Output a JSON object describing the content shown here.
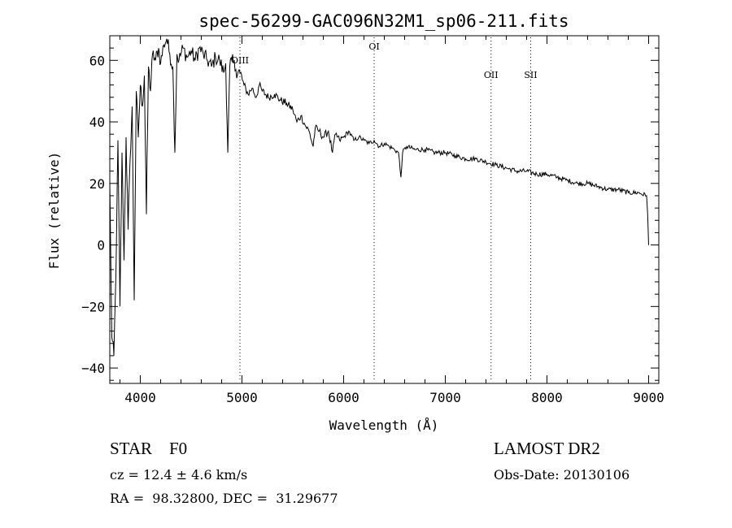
{
  "chart_data": {
    "type": "line",
    "title": "spec-56299-GAC096N32M1_sp06-211.fits",
    "xlabel": "Wavelength (Å)",
    "ylabel": "Flux (relative)",
    "xlim": [
      3700,
      9100
    ],
    "ylim": [
      -45,
      68
    ],
    "x_ticks": [
      4000,
      5000,
      6000,
      7000,
      8000,
      9000
    ],
    "y_ticks": [
      -40,
      -20,
      0,
      20,
      40,
      60
    ],
    "x_tick_labels": [
      "4000",
      "5000",
      "6000",
      "7000",
      "8000",
      "9000"
    ],
    "y_tick_labels": [
      "−40",
      "−20",
      "0",
      "20",
      "40",
      "60"
    ],
    "grid": false,
    "series": [
      {
        "name": "flux",
        "x": [
          3700,
          3720,
          3740,
          3760,
          3780,
          3800,
          3820,
          3840,
          3860,
          3880,
          3900,
          3920,
          3940,
          3960,
          3980,
          4000,
          4020,
          4040,
          4060,
          4080,
          4100,
          4120,
          4150,
          4180,
          4200,
          4230,
          4260,
          4290,
          4320,
          4340,
          4360,
          4380,
          4420,
          4460,
          4500,
          4540,
          4580,
          4620,
          4660,
          4700,
          4740,
          4780,
          4820,
          4840,
          4861,
          4880,
          4900,
          4940,
          4980,
          5020,
          5060,
          5100,
          5140,
          5170,
          5200,
          5260,
          5320,
          5380,
          5440,
          5500,
          5540,
          5580,
          5620,
          5660,
          5700,
          5720,
          5760,
          5800,
          5850,
          5890,
          5920,
          5960,
          6000,
          6050,
          6100,
          6150,
          6200,
          6250,
          6300,
          6350,
          6400,
          6450,
          6500,
          6540,
          6563,
          6580,
          6620,
          6700,
          6800,
          6900,
          7000,
          7100,
          7200,
          7300,
          7400,
          7500,
          7600,
          7700,
          7800,
          7900,
          8000,
          8100,
          8200,
          8300,
          8400,
          8500,
          8600,
          8700,
          8800,
          8900,
          8980,
          8990,
          9000
        ],
        "y": [
          20,
          -30,
          -36,
          -10,
          34,
          -20,
          30,
          -5,
          35,
          5,
          28,
          45,
          -18,
          50,
          35,
          52,
          45,
          55,
          10,
          58,
          50,
          62,
          60,
          64,
          59,
          65,
          67,
          62,
          58,
          30,
          62,
          60,
          64,
          61,
          63,
          60,
          64,
          62,
          60,
          58,
          61,
          60,
          56,
          59,
          30,
          58,
          60,
          57,
          56,
          52,
          49,
          51,
          48,
          52,
          50,
          48,
          49,
          47,
          46,
          44,
          40,
          42,
          39,
          37,
          32,
          38,
          37,
          35,
          37,
          30,
          36,
          34,
          35,
          37,
          34,
          35,
          34,
          33,
          34,
          32,
          33,
          32,
          31,
          30,
          22,
          30,
          32,
          31,
          31,
          30,
          30,
          29,
          28,
          28,
          27,
          26,
          25,
          24,
          24,
          23,
          23,
          22,
          21,
          20,
          20,
          19,
          18,
          18,
          17,
          17,
          16,
          10,
          0
        ]
      }
    ],
    "lines": [
      {
        "label": "OIII",
        "x": 4980
      },
      {
        "label": "OI",
        "x": 6300
      },
      {
        "label": "OII",
        "x": 7450
      },
      {
        "label": "SII",
        "x": 7840
      }
    ]
  },
  "info": {
    "object_class": "STAR    F0",
    "survey": "LAMOST DR2",
    "redshift": "cz = 12.4 ± 4.6 km/s",
    "obs_date": "Obs-Date: 20130106",
    "coordinates": "RA =  98.32800, DEC =  31.29677"
  }
}
